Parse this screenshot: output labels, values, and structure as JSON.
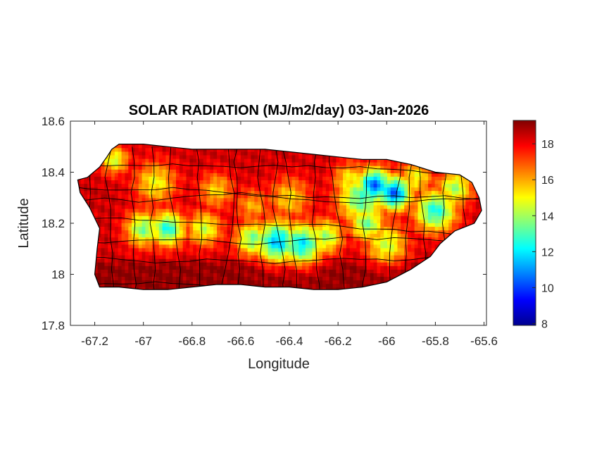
{
  "chart_data": {
    "type": "heatmap",
    "title": "SOLAR RADIATION (MJ/m2/day) 03-Jan-2026",
    "xlabel": "Longitude",
    "ylabel": "Latitude",
    "xlim": [
      -67.3,
      -65.59
    ],
    "ylim": [
      17.8,
      18.6
    ],
    "x_ticks": [
      -67.2,
      -67,
      -66.8,
      -66.6,
      -66.4,
      -66.2,
      -66,
      -65.8,
      -65.6
    ],
    "x_tick_labels": [
      "-67.2",
      "-67",
      "-66.8",
      "-66.6",
      "-66.4",
      "-66.2",
      "-66",
      "-65.8",
      "-65.6"
    ],
    "y_ticks": [
      17.8,
      18,
      18.2,
      18.4,
      18.6
    ],
    "y_tick_labels": [
      "17.8",
      "18",
      "18.2",
      "18.4",
      "18.6"
    ],
    "colorbar": {
      "colormap": "jet",
      "range": [
        7.9,
        19.3
      ],
      "ticks": [
        8,
        10,
        12,
        14,
        16,
        18
      ],
      "tick_labels": [
        "8",
        "10",
        "12",
        "14",
        "16",
        "18"
      ]
    },
    "grid": false,
    "outline": [
      [
        -67.27,
        18.37
      ],
      [
        -67.23,
        18.38
      ],
      [
        -67.18,
        18.42
      ],
      [
        -67.15,
        18.46
      ],
      [
        -67.13,
        18.49
      ],
      [
        -67.1,
        18.51
      ],
      [
        -67.0,
        18.51
      ],
      [
        -66.9,
        18.5
      ],
      [
        -66.8,
        18.49
      ],
      [
        -66.7,
        18.49
      ],
      [
        -66.6,
        18.49
      ],
      [
        -66.5,
        18.49
      ],
      [
        -66.4,
        18.48
      ],
      [
        -66.3,
        18.47
      ],
      [
        -66.2,
        18.46
      ],
      [
        -66.1,
        18.45
      ],
      [
        -66.0,
        18.45
      ],
      [
        -65.9,
        18.43
      ],
      [
        -65.8,
        18.4
      ],
      [
        -65.7,
        18.39
      ],
      [
        -65.65,
        18.36
      ],
      [
        -65.62,
        18.3
      ],
      [
        -65.61,
        18.25
      ],
      [
        -65.64,
        18.2
      ],
      [
        -65.72,
        18.17
      ],
      [
        -65.78,
        18.12
      ],
      [
        -65.82,
        18.07
      ],
      [
        -65.9,
        18.02
      ],
      [
        -66.0,
        17.97
      ],
      [
        -66.1,
        17.95
      ],
      [
        -66.2,
        17.94
      ],
      [
        -66.3,
        17.94
      ],
      [
        -66.4,
        17.95
      ],
      [
        -66.5,
        17.95
      ],
      [
        -66.6,
        17.96
      ],
      [
        -66.7,
        17.96
      ],
      [
        -66.8,
        17.95
      ],
      [
        -66.9,
        17.94
      ],
      [
        -67.0,
        17.94
      ],
      [
        -67.1,
        17.95
      ],
      [
        -67.18,
        17.95
      ],
      [
        -67.2,
        18.0
      ],
      [
        -67.19,
        18.1
      ],
      [
        -67.18,
        18.18
      ],
      [
        -67.22,
        18.26
      ],
      [
        -67.26,
        18.32
      ],
      [
        -67.27,
        18.37
      ]
    ],
    "field_base": 18.4,
    "field_blobs": [
      {
        "lon": -66.05,
        "lat": 18.35,
        "radius": 0.05,
        "value": 10.5
      },
      {
        "lon": -65.97,
        "lat": 18.32,
        "radius": 0.05,
        "value": 10.5
      },
      {
        "lon": -66.1,
        "lat": 18.3,
        "radius": 0.07,
        "value": 13
      },
      {
        "lon": -65.8,
        "lat": 18.25,
        "radius": 0.06,
        "value": 12.5
      },
      {
        "lon": -65.72,
        "lat": 18.34,
        "radius": 0.05,
        "value": 14
      },
      {
        "lon": -65.88,
        "lat": 18.38,
        "radius": 0.05,
        "value": 15
      },
      {
        "lon": -66.45,
        "lat": 18.13,
        "radius": 0.06,
        "value": 11.5
      },
      {
        "lon": -66.35,
        "lat": 18.12,
        "radius": 0.06,
        "value": 12
      },
      {
        "lon": -66.55,
        "lat": 18.14,
        "radius": 0.05,
        "value": 13.5
      },
      {
        "lon": -66.25,
        "lat": 18.15,
        "radius": 0.05,
        "value": 14
      },
      {
        "lon": -66.0,
        "lat": 18.12,
        "radius": 0.06,
        "value": 14.5
      },
      {
        "lon": -66.08,
        "lat": 18.2,
        "radius": 0.05,
        "value": 13.5
      },
      {
        "lon": -66.9,
        "lat": 18.18,
        "radius": 0.05,
        "value": 12.5
      },
      {
        "lon": -67.0,
        "lat": 18.18,
        "radius": 0.05,
        "value": 13.5
      },
      {
        "lon": -66.75,
        "lat": 18.18,
        "radius": 0.05,
        "value": 14.5
      },
      {
        "lon": -67.12,
        "lat": 18.45,
        "radius": 0.04,
        "value": 14.5
      },
      {
        "lon": -66.95,
        "lat": 18.36,
        "radius": 0.06,
        "value": 15
      },
      {
        "lon": -66.7,
        "lat": 18.33,
        "radius": 0.05,
        "value": 15.5
      },
      {
        "lon": -66.4,
        "lat": 18.3,
        "radius": 0.06,
        "value": 15.5
      },
      {
        "lon": -66.55,
        "lat": 18.27,
        "radius": 0.05,
        "value": 16
      },
      {
        "lon": -66.15,
        "lat": 18.37,
        "radius": 0.05,
        "value": 15
      }
    ],
    "southern_band": {
      "lat_max": 18.07,
      "value": 19.1
    }
  }
}
